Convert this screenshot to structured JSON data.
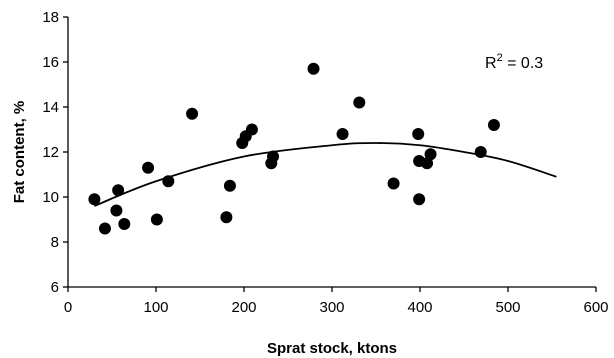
{
  "chart_data": {
    "type": "scatter",
    "xlabel": "Sprat stock, ktons",
    "ylabel": "Fat content, %",
    "xlim": [
      0,
      600
    ],
    "ylim": [
      6,
      18
    ],
    "xticks": [
      0,
      100,
      200,
      300,
      400,
      500,
      600
    ],
    "yticks": [
      6,
      8,
      10,
      12,
      14,
      16,
      18
    ],
    "grid": false,
    "legend": "none",
    "annotation": {
      "base": "R",
      "sup": "2",
      "rest": " = 0.3"
    },
    "points": [
      {
        "x": 30,
        "y": 9.9
      },
      {
        "x": 42,
        "y": 8.6
      },
      {
        "x": 55,
        "y": 9.4
      },
      {
        "x": 57,
        "y": 10.3
      },
      {
        "x": 64,
        "y": 8.8
      },
      {
        "x": 91,
        "y": 11.3
      },
      {
        "x": 101,
        "y": 9.0
      },
      {
        "x": 114,
        "y": 10.7
      },
      {
        "x": 141,
        "y": 13.7
      },
      {
        "x": 180,
        "y": 9.1
      },
      {
        "x": 184,
        "y": 10.5
      },
      {
        "x": 198,
        "y": 12.4
      },
      {
        "x": 202,
        "y": 12.7
      },
      {
        "x": 209,
        "y": 13.0
      },
      {
        "x": 231,
        "y": 11.5
      },
      {
        "x": 233,
        "y": 11.8
      },
      {
        "x": 279,
        "y": 15.7
      },
      {
        "x": 312,
        "y": 12.8
      },
      {
        "x": 331,
        "y": 14.2
      },
      {
        "x": 370,
        "y": 10.6
      },
      {
        "x": 398,
        "y": 12.8
      },
      {
        "x": 399,
        "y": 11.6
      },
      {
        "x": 399,
        "y": 9.9
      },
      {
        "x": 408,
        "y": 11.5
      },
      {
        "x": 412,
        "y": 11.9
      },
      {
        "x": 469,
        "y": 12.0
      },
      {
        "x": 484,
        "y": 13.2
      }
    ],
    "trendline": {
      "type": "polynomial",
      "x": [
        30,
        100,
        200,
        300,
        350,
        400,
        450,
        500,
        555
      ],
      "y": [
        9.6,
        10.7,
        11.8,
        12.3,
        12.4,
        12.3,
        12.0,
        11.6,
        10.9
      ]
    },
    "colors": {
      "points": "#000000",
      "line": "#000000",
      "axes": "#000000"
    }
  }
}
